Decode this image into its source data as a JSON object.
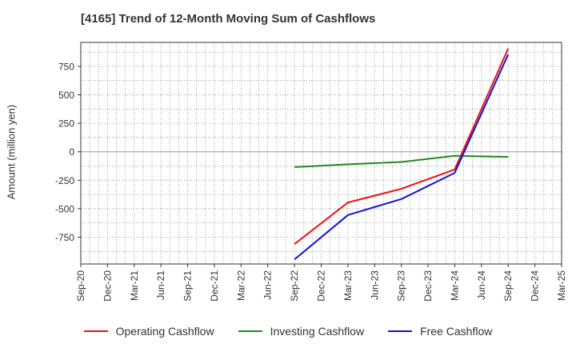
{
  "chart_data": {
    "type": "line",
    "title": "[4165]  Trend of 12-Month Moving Sum of Cashflows",
    "ylabel": "Amount (million yen)",
    "xlabel": "",
    "x": [
      "Sep-20",
      "Dec-20",
      "Mar-21",
      "Jun-21",
      "Sep-21",
      "Dec-21",
      "Mar-22",
      "Jun-22",
      "Sep-22",
      "Dec-22",
      "Mar-23",
      "Jun-23",
      "Sep-23",
      "Dec-23",
      "Mar-24",
      "Jun-24",
      "Sep-24",
      "Dec-24",
      "Mar-25"
    ],
    "y_ticks": [
      750,
      500,
      250,
      0,
      -250,
      -500,
      -750
    ],
    "ylim": [
      -985,
      960
    ],
    "grid": true,
    "legend_position": "bottom",
    "series": [
      {
        "name": "Operating Cashflow",
        "color": "#ee1111",
        "points": [
          [
            "Sep-22",
            -810
          ],
          [
            "Mar-23",
            -445
          ],
          [
            "Sep-23",
            -325
          ],
          [
            "Mar-24",
            -155
          ],
          [
            "Sep-24",
            905
          ]
        ]
      },
      {
        "name": "Investing Cashflow",
        "color": "#228822",
        "points": [
          [
            "Sep-22",
            -135
          ],
          [
            "Mar-23",
            -110
          ],
          [
            "Sep-23",
            -90
          ],
          [
            "Mar-24",
            -35
          ],
          [
            "Sep-24",
            -45
          ]
        ]
      },
      {
        "name": "Free Cashflow",
        "color": "#1111dd",
        "points": [
          [
            "Sep-22",
            -945
          ],
          [
            "Mar-23",
            -555
          ],
          [
            "Sep-23",
            -415
          ],
          [
            "Mar-24",
            -185
          ],
          [
            "Sep-24",
            855
          ]
        ]
      }
    ]
  }
}
